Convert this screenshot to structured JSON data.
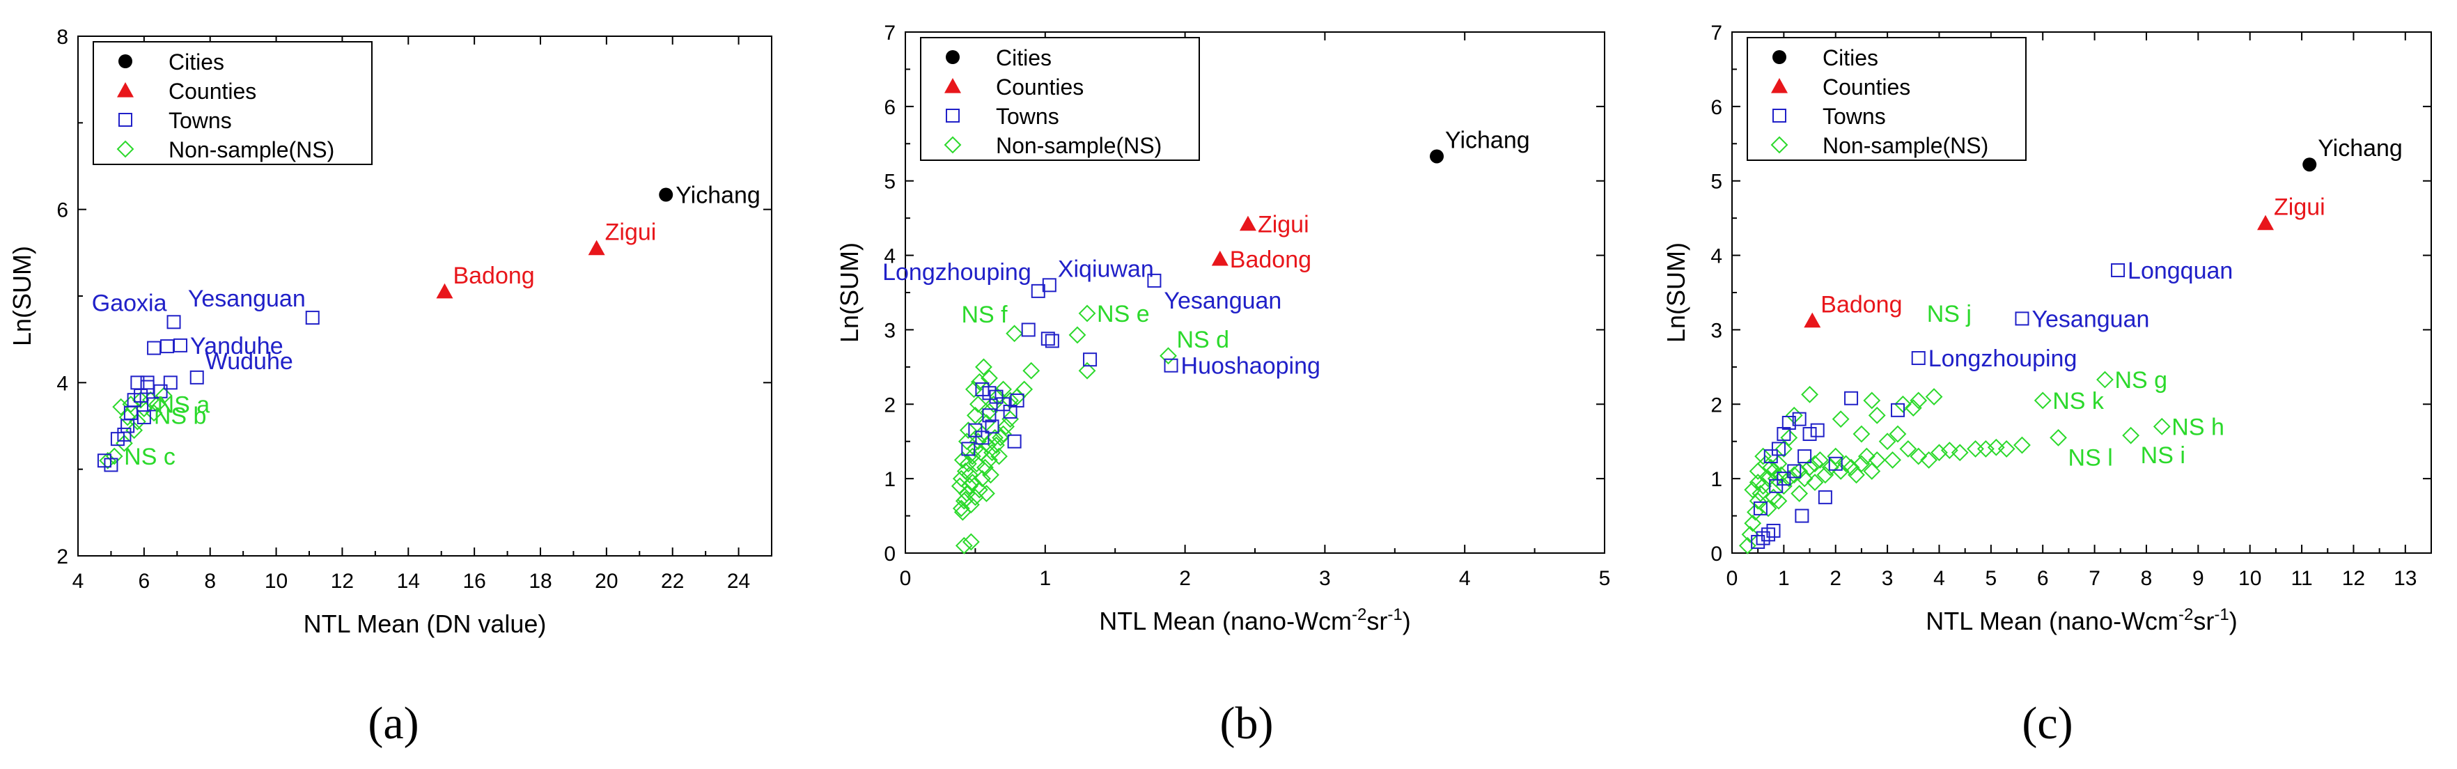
{
  "colors": {
    "cities": "#000000",
    "counties": "#e8161b",
    "towns": "#2020c8",
    "ns": "#2bd92b",
    "axis": "#000000",
    "frame": "#000000"
  },
  "legend": {
    "cities": "Cities",
    "counties": "Counties",
    "towns": "Towns",
    "ns": "Non-sample(NS)"
  },
  "chart_data": [
    {
      "id": "a",
      "type": "scatter",
      "sub_label": "(a)",
      "xlabel": "NTL Mean (DN value)",
      "ylabel": "Ln(SUM)",
      "xlim": [
        4,
        25
      ],
      "ylim": [
        2,
        8
      ],
      "xticks": [
        4,
        6,
        8,
        10,
        12,
        14,
        16,
        18,
        20,
        22,
        24
      ],
      "yticks": [
        2,
        4,
        6,
        8
      ],
      "legend_position": "top-left",
      "cities": [
        [
          21.8,
          6.17
        ]
      ],
      "counties": [
        [
          15.1,
          5.05
        ],
        [
          19.7,
          5.55
        ]
      ],
      "towns": [
        [
          4.8,
          3.1
        ],
        [
          5.0,
          3.05
        ],
        [
          5.2,
          3.35
        ],
        [
          5.4,
          3.4
        ],
        [
          5.5,
          3.5
        ],
        [
          5.6,
          3.65
        ],
        [
          5.7,
          3.8
        ],
        [
          5.8,
          4.0
        ],
        [
          5.9,
          3.85
        ],
        [
          6.0,
          3.6
        ],
        [
          6.1,
          3.95
        ],
        [
          6.1,
          4.0
        ],
        [
          6.3,
          3.75
        ],
        [
          6.3,
          4.4
        ],
        [
          6.5,
          3.9
        ],
        [
          6.7,
          4.42
        ],
        [
          6.8,
          4.0
        ],
        [
          6.9,
          4.7
        ],
        [
          7.1,
          4.43
        ],
        [
          7.6,
          4.06
        ],
        [
          11.1,
          4.75
        ]
      ],
      "ns": [
        [
          4.9,
          3.1
        ],
        [
          5.1,
          3.15
        ],
        [
          5.3,
          3.72
        ],
        [
          5.5,
          3.6
        ],
        [
          5.6,
          3.75
        ],
        [
          5.8,
          3.55
        ],
        [
          5.9,
          3.8
        ],
        [
          6.0,
          3.7
        ],
        [
          6.2,
          3.8
        ],
        [
          6.3,
          3.65
        ],
        [
          6.4,
          3.75
        ],
        [
          6.6,
          3.85
        ],
        [
          5.4,
          3.3
        ],
        [
          5.7,
          3.45
        ]
      ],
      "labels": [
        {
          "text": "Yichang",
          "group": "cities",
          "x": 21.8,
          "y": 6.17,
          "anchor": "r"
        },
        {
          "text": "Zigui",
          "group": "counties",
          "x": 19.7,
          "y": 5.55,
          "anchor": "ur"
        },
        {
          "text": "Badong",
          "group": "counties",
          "x": 15.1,
          "y": 5.05,
          "anchor": "ur"
        },
        {
          "text": "Yesanguan",
          "group": "towns",
          "x": 11.1,
          "y": 4.75,
          "anchor": "ul"
        },
        {
          "text": "Gaoxia",
          "group": "towns",
          "x": 6.9,
          "y": 4.7,
          "anchor": "ul"
        },
        {
          "text": "Yanduhe",
          "group": "towns",
          "x": 7.1,
          "y": 4.43,
          "anchor": "r"
        },
        {
          "text": "Wuduhe",
          "group": "towns",
          "x": 7.6,
          "y": 4.06,
          "anchor": "ur"
        },
        {
          "text": "NS a",
          "group": "ns",
          "x": 6.1,
          "y": 3.75,
          "anchor": "r"
        },
        {
          "text": "NS b",
          "group": "ns",
          "x": 6.0,
          "y": 3.62,
          "anchor": "r"
        },
        {
          "text": "NS c",
          "group": "ns",
          "x": 5.1,
          "y": 3.15,
          "anchor": "r"
        }
      ]
    },
    {
      "id": "b",
      "type": "scatter",
      "sub_label": "(b)",
      "xlabel": "NTL Mean (nano-Wcm",
      "xlabel_sup": "-2",
      "xlabel_mid": "sr",
      "xlabel_sup2": "-1",
      "xlabel_end": ")",
      "ylabel": "Ln(SUM)",
      "xlim": [
        0,
        5
      ],
      "ylim": [
        0,
        7
      ],
      "xticks": [
        0,
        1,
        2,
        3,
        4,
        5
      ],
      "yticks": [
        0,
        1,
        2,
        3,
        4,
        5,
        6,
        7
      ],
      "legend_position": "top-left",
      "cities": [
        [
          3.8,
          5.33
        ]
      ],
      "counties": [
        [
          2.25,
          3.95
        ],
        [
          2.45,
          4.42
        ]
      ],
      "towns": [
        [
          0.95,
          3.52
        ],
        [
          1.03,
          3.6
        ],
        [
          0.88,
          3.0
        ],
        [
          1.02,
          2.88
        ],
        [
          1.05,
          2.85
        ],
        [
          1.32,
          2.6
        ],
        [
          1.78,
          3.66
        ],
        [
          1.9,
          2.52
        ],
        [
          0.55,
          2.2
        ],
        [
          0.6,
          2.15
        ],
        [
          0.65,
          2.1
        ],
        [
          0.7,
          2.0
        ],
        [
          0.75,
          1.9
        ],
        [
          0.8,
          2.05
        ],
        [
          0.6,
          1.85
        ],
        [
          0.5,
          1.65
        ],
        [
          0.45,
          1.4
        ],
        [
          0.78,
          1.5
        ],
        [
          0.62,
          1.7
        ],
        [
          0.55,
          1.55
        ]
      ],
      "ns": [
        [
          0.4,
          0.6
        ],
        [
          0.42,
          0.7
        ],
        [
          0.44,
          0.8
        ],
        [
          0.46,
          0.9
        ],
        [
          0.4,
          1.0
        ],
        [
          0.43,
          1.1
        ],
        [
          0.45,
          1.2
        ],
        [
          0.48,
          1.3
        ],
        [
          0.5,
          1.4
        ],
        [
          0.52,
          1.5
        ],
        [
          0.41,
          0.55
        ],
        [
          0.47,
          0.65
        ],
        [
          0.5,
          0.75
        ],
        [
          0.53,
          0.85
        ],
        [
          0.55,
          1.0
        ],
        [
          0.57,
          1.15
        ],
        [
          0.6,
          1.25
        ],
        [
          0.62,
          1.35
        ],
        [
          0.65,
          1.45
        ],
        [
          0.68,
          1.55
        ],
        [
          0.7,
          1.6
        ],
        [
          0.72,
          1.7
        ],
        [
          0.75,
          1.8
        ],
        [
          0.55,
          1.6
        ],
        [
          0.58,
          1.75
        ],
        [
          0.6,
          1.9
        ],
        [
          0.63,
          2.0
        ],
        [
          0.66,
          2.1
        ],
        [
          0.7,
          2.2
        ],
        [
          0.75,
          2.05
        ],
        [
          0.8,
          2.1
        ],
        [
          0.85,
          2.2
        ],
        [
          0.9,
          2.45
        ],
        [
          0.78,
          2.95
        ],
        [
          1.3,
          2.45
        ],
        [
          1.3,
          3.22
        ],
        [
          1.23,
          2.93
        ],
        [
          1.88,
          2.65
        ],
        [
          0.42,
          0.1
        ],
        [
          0.47,
          0.15
        ],
        [
          0.45,
          1.65
        ],
        [
          0.5,
          1.85
        ],
        [
          0.52,
          2.0
        ],
        [
          0.49,
          2.2
        ],
        [
          0.53,
          2.3
        ],
        [
          0.56,
          2.5
        ],
        [
          0.6,
          2.35
        ],
        [
          0.64,
          1.55
        ],
        [
          0.67,
          1.3
        ],
        [
          0.44,
          1.5
        ],
        [
          0.46,
          1.05
        ],
        [
          0.48,
          0.95
        ],
        [
          0.51,
          1.2
        ],
        [
          0.54,
          1.35
        ],
        [
          0.59,
          1.45
        ],
        [
          0.61,
          1.05
        ],
        [
          0.58,
          0.8
        ],
        [
          0.43,
          0.72
        ],
        [
          0.39,
          0.9
        ],
        [
          0.41,
          1.25
        ]
      ],
      "labels": [
        {
          "text": "Yichang",
          "group": "cities",
          "x": 3.8,
          "y": 5.33,
          "anchor": "ur"
        },
        {
          "text": "Zigui",
          "group": "counties",
          "x": 2.45,
          "y": 4.42,
          "anchor": "r"
        },
        {
          "text": "Badong",
          "group": "counties",
          "x": 2.25,
          "y": 3.95,
          "anchor": "r"
        },
        {
          "text": "Yesanguan",
          "group": "towns",
          "x": 1.78,
          "y": 3.66,
          "anchor": "dr"
        },
        {
          "text": "Xiqiuwan",
          "group": "towns",
          "x": 1.03,
          "y": 3.6,
          "anchor": "ur"
        },
        {
          "text": "Longzhouping",
          "group": "towns",
          "x": 0.95,
          "y": 3.52,
          "anchor": "ul"
        },
        {
          "text": "Huoshaoping",
          "group": "towns",
          "x": 1.9,
          "y": 2.52,
          "anchor": "r"
        },
        {
          "text": "NS e",
          "group": "ns",
          "x": 1.3,
          "y": 3.22,
          "anchor": "r"
        },
        {
          "text": "NS f",
          "group": "ns",
          "x": 0.78,
          "y": 2.95,
          "anchor": "ul"
        },
        {
          "text": "NS d",
          "group": "ns",
          "x": 1.88,
          "y": 2.65,
          "anchor": "ur"
        }
      ]
    },
    {
      "id": "c",
      "type": "scatter",
      "sub_label": "(c)",
      "xlabel": "NTL Mean (nano-Wcm",
      "xlabel_sup": "-2",
      "xlabel_mid": "sr",
      "xlabel_sup2": "-1",
      "xlabel_end": ")",
      "ylabel": "Ln(SUM)",
      "xlim": [
        0,
        13.5
      ],
      "ylim": [
        0,
        7
      ],
      "xticks": [
        0,
        1,
        2,
        3,
        4,
        5,
        6,
        7,
        8,
        9,
        10,
        11,
        12,
        13
      ],
      "yticks": [
        0,
        1,
        2,
        3,
        4,
        5,
        6,
        7
      ],
      "legend_position": "top-left",
      "cities": [
        [
          11.15,
          5.22
        ]
      ],
      "counties": [
        [
          1.55,
          3.12
        ],
        [
          10.3,
          4.43
        ]
      ],
      "towns": [
        [
          0.5,
          0.15
        ],
        [
          0.6,
          0.2
        ],
        [
          0.7,
          0.25
        ],
        [
          0.8,
          0.3
        ],
        [
          0.55,
          0.6
        ],
        [
          0.75,
          1.3
        ],
        [
          0.9,
          1.4
        ],
        [
          1.0,
          1.6
        ],
        [
          1.1,
          1.75
        ],
        [
          1.3,
          1.8
        ],
        [
          1.5,
          1.6
        ],
        [
          1.65,
          1.65
        ],
        [
          0.85,
          0.9
        ],
        [
          1.0,
          1.0
        ],
        [
          1.2,
          1.1
        ],
        [
          1.4,
          1.3
        ],
        [
          1.8,
          0.75
        ],
        [
          2.3,
          2.08
        ],
        [
          3.2,
          1.92
        ],
        [
          3.6,
          2.62
        ],
        [
          5.6,
          3.15
        ],
        [
          7.45,
          3.8
        ],
        [
          2.0,
          1.2
        ],
        [
          1.35,
          0.5
        ]
      ],
      "ns": [
        [
          0.3,
          0.1
        ],
        [
          0.35,
          0.25
        ],
        [
          0.4,
          0.4
        ],
        [
          0.45,
          0.55
        ],
        [
          0.5,
          0.7
        ],
        [
          0.55,
          0.8
        ],
        [
          0.6,
          0.9
        ],
        [
          0.7,
          1.0
        ],
        [
          0.8,
          1.1
        ],
        [
          0.9,
          1.2
        ],
        [
          1.0,
          0.9
        ],
        [
          1.1,
          1.0
        ],
        [
          1.2,
          1.05
        ],
        [
          1.3,
          1.1
        ],
        [
          1.4,
          1.0
        ],
        [
          1.5,
          1.15
        ],
        [
          1.6,
          1.2
        ],
        [
          1.7,
          1.25
        ],
        [
          1.8,
          1.05
        ],
        [
          1.9,
          1.15
        ],
        [
          2.0,
          1.3
        ],
        [
          2.1,
          1.1
        ],
        [
          2.2,
          1.2
        ],
        [
          2.3,
          1.15
        ],
        [
          2.4,
          1.05
        ],
        [
          2.5,
          1.2
        ],
        [
          2.6,
          1.3
        ],
        [
          2.7,
          1.1
        ],
        [
          2.8,
          1.25
        ],
        [
          3.0,
          1.5
        ],
        [
          3.2,
          1.6
        ],
        [
          3.4,
          1.4
        ],
        [
          3.6,
          1.3
        ],
        [
          3.8,
          1.25
        ],
        [
          4.0,
          1.35
        ],
        [
          4.2,
          1.38
        ],
        [
          4.4,
          1.35
        ],
        [
          4.9,
          1.4
        ],
        [
          5.1,
          1.42
        ],
        [
          5.3,
          1.4
        ],
        [
          5.6,
          1.45
        ],
        [
          1.5,
          2.13
        ],
        [
          2.1,
          1.8
        ],
        [
          2.7,
          2.05
        ],
        [
          3.3,
          2.0
        ],
        [
          3.5,
          1.95
        ],
        [
          3.6,
          2.05
        ],
        [
          3.9,
          2.1
        ],
        [
          6.0,
          2.05
        ],
        [
          6.3,
          1.55
        ],
        [
          7.2,
          2.33
        ],
        [
          7.7,
          1.58
        ],
        [
          8.3,
          1.7
        ],
        [
          0.5,
          1.1
        ],
        [
          0.6,
          1.3
        ],
        [
          0.7,
          0.6
        ],
        [
          0.8,
          0.75
        ],
        [
          0.9,
          0.7
        ],
        [
          1.0,
          1.4
        ],
        [
          1.1,
          1.55
        ],
        [
          1.2,
          1.85
        ],
        [
          0.4,
          0.85
        ],
        [
          0.5,
          0.95
        ],
        [
          1.3,
          0.8
        ],
        [
          1.6,
          0.95
        ],
        [
          2.5,
          1.6
        ],
        [
          2.8,
          1.85
        ],
        [
          3.1,
          1.25
        ],
        [
          4.7,
          1.4
        ],
        [
          0.65,
          1.2
        ],
        [
          0.75,
          1.15
        ],
        [
          0.85,
          1.0
        ],
        [
          0.95,
          1.05
        ]
      ],
      "labels": [
        {
          "text": "Yichang",
          "group": "cities",
          "x": 11.15,
          "y": 5.22,
          "anchor": "ur"
        },
        {
          "text": "Zigui",
          "group": "counties",
          "x": 10.3,
          "y": 4.43,
          "anchor": "ur"
        },
        {
          "text": "Badong",
          "group": "counties",
          "x": 1.55,
          "y": 3.12,
          "anchor": "ur"
        },
        {
          "text": "Longquan",
          "group": "towns",
          "x": 7.45,
          "y": 3.8,
          "anchor": "r"
        },
        {
          "text": "Yesanguan",
          "group": "towns",
          "x": 5.6,
          "y": 3.15,
          "anchor": "r"
        },
        {
          "text": "Longzhouping",
          "group": "towns",
          "x": 3.6,
          "y": 2.62,
          "anchor": "r"
        },
        {
          "text": "NS j",
          "group": "ns",
          "x": 3.6,
          "y": 2.62,
          "anchor": "uur"
        },
        {
          "text": "NS g",
          "group": "ns",
          "x": 7.2,
          "y": 2.33,
          "anchor": "r"
        },
        {
          "text": "NS k",
          "group": "ns",
          "x": 6.0,
          "y": 2.05,
          "anchor": "r"
        },
        {
          "text": "NS h",
          "group": "ns",
          "x": 8.3,
          "y": 1.7,
          "anchor": "r"
        },
        {
          "text": "NS i",
          "group": "ns",
          "x": 7.7,
          "y": 1.58,
          "anchor": "dr"
        },
        {
          "text": "NS l",
          "group": "ns",
          "x": 6.3,
          "y": 1.55,
          "anchor": "dr"
        }
      ]
    }
  ]
}
